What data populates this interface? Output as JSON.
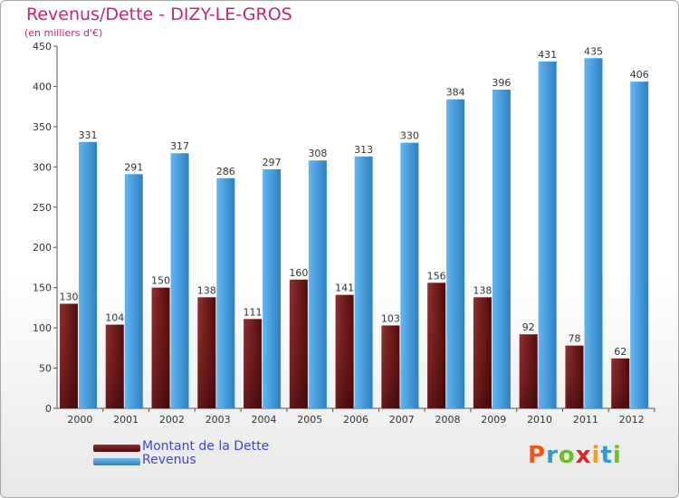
{
  "title": "Revenus/Dette - DIZY-LE-GROS",
  "subtitle": "(en milliers d'€)",
  "legend": [
    {
      "label": "Montant de la Dette",
      "color": "#7a1a1a"
    },
    {
      "label": "Revenus",
      "color": "#4aa3e8"
    }
  ],
  "logo": {
    "text": "Proxiti",
    "colors": [
      "#e85c1a",
      "#2a9bd6",
      "#6abf2a",
      "#d62a2a",
      "#e8a21a",
      "#2a9bd6",
      "#6abf2a"
    ]
  },
  "colors": {
    "dette": "#7a1a1a",
    "dette_light": "#8e2f2f",
    "dette_dark": "#4e0b0b",
    "revenus": "#52a9ea",
    "revenus_dark": "#2f7fc4",
    "title": "#c0267a",
    "legend_text": "#3b49c9"
  },
  "chart_data": {
    "type": "bar",
    "title": "Revenus/Dette - DIZY-LE-GROS",
    "subtitle": "(en milliers d'€)",
    "categories": [
      "2000",
      "2001",
      "2002",
      "2003",
      "2004",
      "2005",
      "2006",
      "2007",
      "2008",
      "2009",
      "2010",
      "2011",
      "2012"
    ],
    "series": [
      {
        "name": "Montant de la Dette",
        "values": [
          130,
          104,
          150,
          138,
          111,
          160,
          141,
          103,
          156,
          138,
          92,
          78,
          62
        ]
      },
      {
        "name": "Revenus",
        "values": [
          331,
          291,
          317,
          286,
          297,
          308,
          313,
          330,
          384,
          396,
          431,
          435,
          406
        ]
      }
    ],
    "ylim": [
      0,
      450
    ],
    "yticks": [
      0,
      50,
      100,
      150,
      200,
      250,
      300,
      350,
      400,
      450
    ],
    "grid": false,
    "legend_position": "bottom-left"
  }
}
